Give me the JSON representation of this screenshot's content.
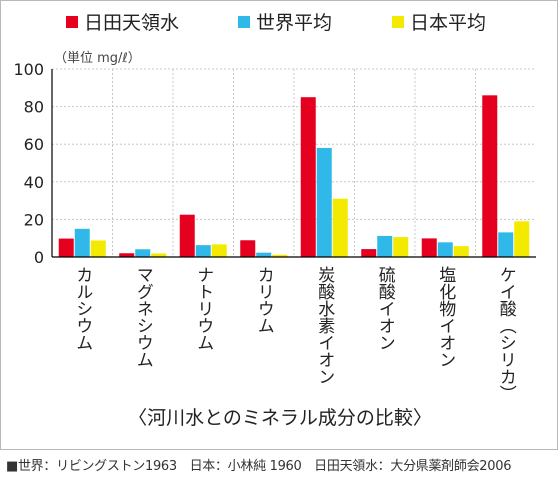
{
  "legend": {
    "items": [
      {
        "label": "日田天領水",
        "color": "#e6001f"
      },
      {
        "label": "世界平均",
        "color": "#2fb8e8"
      },
      {
        "label": "日本平均",
        "color": "#f4ea00"
      }
    ]
  },
  "unit_label": "（単位 mg/ℓ）",
  "subtitle": "〈河川水とのミネラル成分の比較〉",
  "footer": "■世界：リビングストン1963　日本：小林純 1960　日田天領水：大分県薬剤師会2006",
  "chart_data": {
    "type": "bar",
    "categories": [
      "カルシウム",
      "マグネシウム",
      "ナトリウム",
      "カリウム",
      "炭酸水素イオン",
      "硫酸イオン",
      "塩化物イオン",
      "ケイ酸（シリカ）"
    ],
    "series": [
      {
        "name": "日田天領水",
        "color": "#e6001f",
        "values": [
          9.8,
          2.0,
          22.5,
          8.9,
          85.0,
          4.2,
          9.9,
          86.0
        ]
      },
      {
        "name": "世界平均",
        "color": "#2fb8e8",
        "values": [
          15.0,
          4.1,
          6.3,
          2.3,
          58.0,
          11.2,
          7.8,
          13.1
        ]
      },
      {
        "name": "日本平均",
        "color": "#f4ea00",
        "values": [
          8.8,
          1.9,
          6.7,
          1.2,
          31.0,
          10.6,
          5.8,
          19.0
        ]
      }
    ],
    "yticks": [
      0,
      20,
      40,
      60,
      80,
      100
    ],
    "ylim": [
      0,
      100
    ],
    "grid": true
  }
}
